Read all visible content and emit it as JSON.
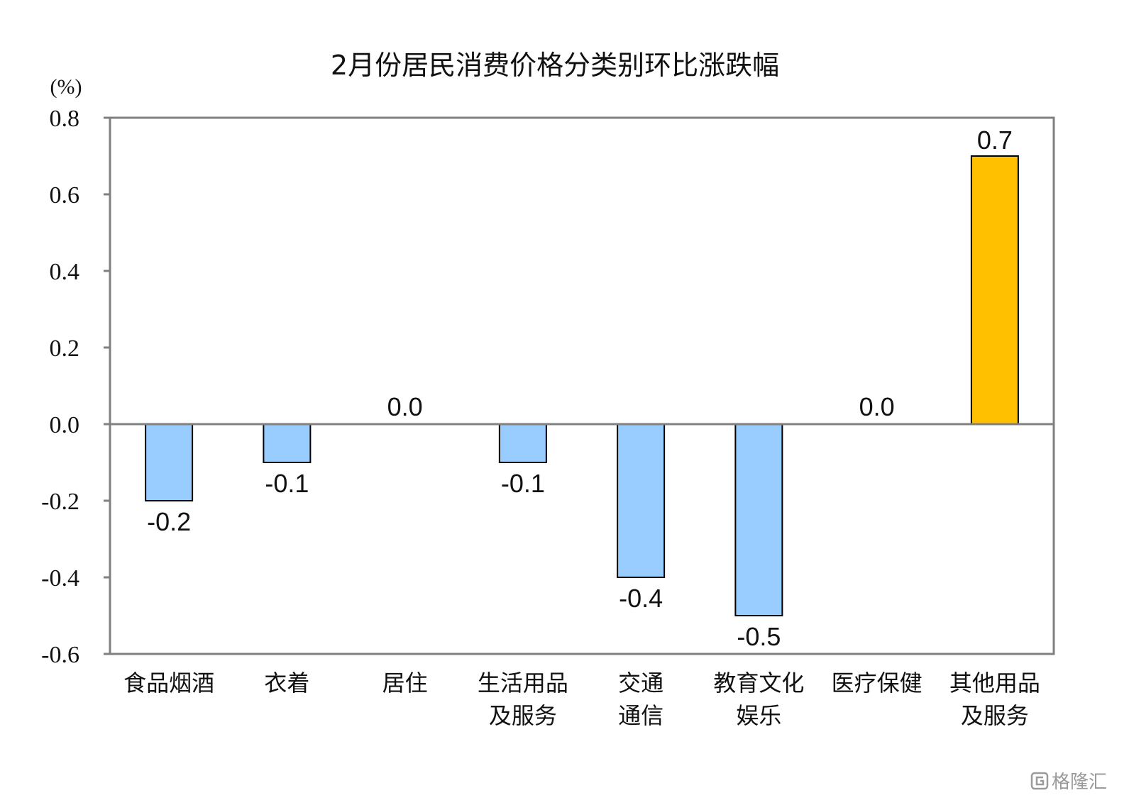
{
  "chart_data": {
    "type": "bar",
    "title": "2月份居民消费价格分类别环比涨跌幅",
    "unit_label": "(%)",
    "ylim": [
      -0.6,
      0.8
    ],
    "yticks": [
      "0.8",
      "0.6",
      "0.4",
      "0.2",
      "0.0",
      "-0.2",
      "-0.4",
      "-0.6"
    ],
    "ytick_values": [
      0.8,
      0.6,
      0.4,
      0.2,
      0.0,
      -0.2,
      -0.4,
      -0.6
    ],
    "grid": false,
    "categories": [
      [
        "食品烟酒"
      ],
      [
        "衣着"
      ],
      [
        "居住"
      ],
      [
        "生活用品",
        "及服务"
      ],
      [
        "交通",
        "通信"
      ],
      [
        "教育文化",
        "娱乐"
      ],
      [
        "医疗保健"
      ],
      [
        "其他用品",
        "及服务"
      ]
    ],
    "values": [
      -0.2,
      -0.1,
      0.0,
      -0.1,
      -0.4,
      -0.5,
      0.0,
      0.7
    ],
    "value_labels": [
      "-0.2",
      "-0.1",
      "0.0",
      "-0.1",
      "-0.4",
      "-0.5",
      "0.0",
      "0.7"
    ],
    "colors": {
      "negative": "#99ccff",
      "positive": "#ffc000",
      "axis": "#808080",
      "bar_border": "#000000"
    }
  },
  "watermark": {
    "text": "格隆汇",
    "icon": "gelonghui-logo-icon"
  }
}
